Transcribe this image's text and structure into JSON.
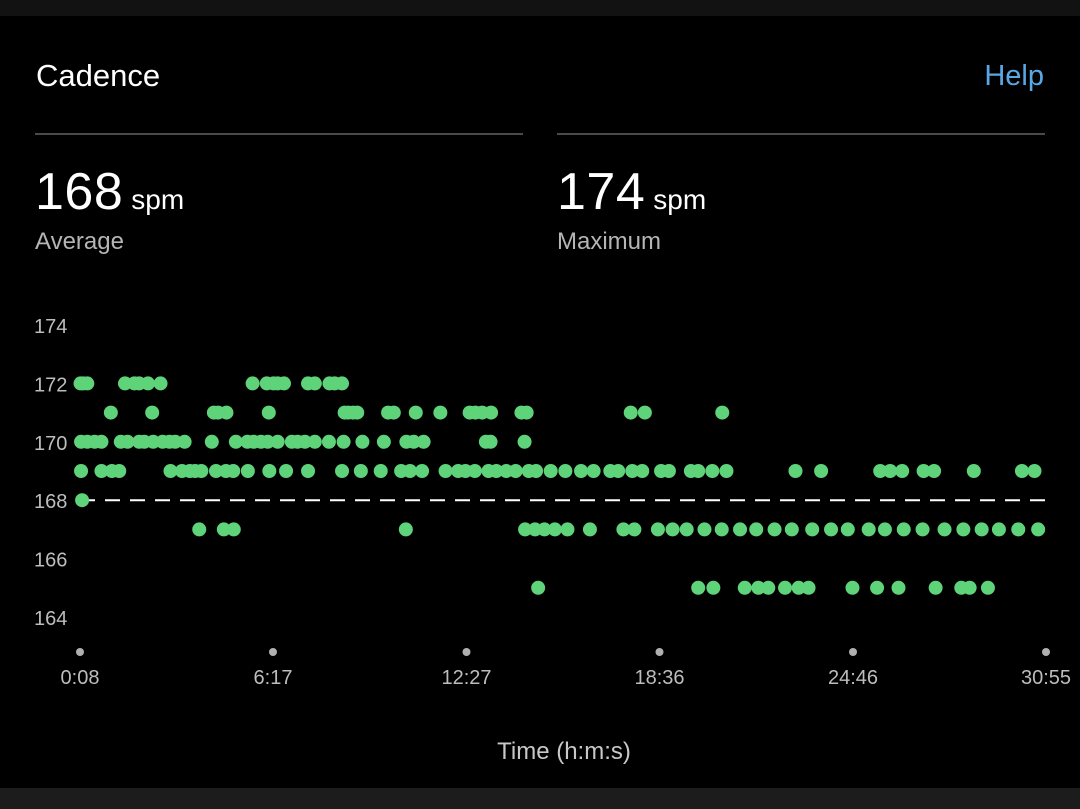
{
  "header": {
    "title": "Cadence",
    "help_label": "Help"
  },
  "stats": {
    "average": {
      "value": "168",
      "unit": "spm",
      "label": "Average"
    },
    "maximum": {
      "value": "174",
      "unit": "spm",
      "label": "Maximum"
    }
  },
  "colors": {
    "point": "#5fd37a",
    "accent_link": "#5aa7e6",
    "background": "#000000",
    "reference_line": "#ffffff"
  },
  "chart_data": {
    "type": "scatter",
    "title": "",
    "xlabel": "Time (h:m:s)",
    "ylabel": "",
    "x_unit": "seconds",
    "xlim": [
      8,
      1855
    ],
    "ylim": [
      164,
      174
    ],
    "y_ticks": [
      174,
      172,
      170,
      168,
      166,
      164
    ],
    "x_ticks": [
      {
        "value": 8,
        "label": "0:08"
      },
      {
        "value": 377,
        "label": "6:17"
      },
      {
        "value": 747,
        "label": "12:27"
      },
      {
        "value": 1116,
        "label": "18:36"
      },
      {
        "value": 1486,
        "label": "24:46"
      },
      {
        "value": 1855,
        "label": "30:55"
      }
    ],
    "reference_line": {
      "value": 168,
      "label": "Average",
      "style": "dashed"
    },
    "grid": false,
    "legend": "none",
    "series": [
      {
        "points": [
          [
            9,
            172
          ],
          [
            14,
            172
          ],
          [
            22,
            172
          ],
          [
            94,
            172
          ],
          [
            112,
            172
          ],
          [
            121,
            172
          ],
          [
            138,
            172
          ],
          [
            162,
            172
          ],
          [
            338,
            172
          ],
          [
            365,
            172
          ],
          [
            378,
            172
          ],
          [
            386,
            172
          ],
          [
            398,
            172
          ],
          [
            444,
            172
          ],
          [
            457,
            172
          ],
          [
            485,
            172
          ],
          [
            495,
            172
          ],
          [
            509,
            172
          ],
          [
            67,
            171
          ],
          [
            146,
            171
          ],
          [
            264,
            171
          ],
          [
            272,
            171
          ],
          [
            288,
            171
          ],
          [
            369,
            171
          ],
          [
            514,
            171
          ],
          [
            521,
            171
          ],
          [
            530,
            171
          ],
          [
            538,
            171
          ],
          [
            597,
            171
          ],
          [
            608,
            171
          ],
          [
            650,
            171
          ],
          [
            697,
            171
          ],
          [
            753,
            171
          ],
          [
            764,
            171
          ],
          [
            777,
            171
          ],
          [
            794,
            171
          ],
          [
            852,
            171
          ],
          [
            862,
            171
          ],
          [
            1061,
            171
          ],
          [
            1088,
            171
          ],
          [
            1236,
            171
          ],
          [
            10,
            170
          ],
          [
            22,
            170
          ],
          [
            36,
            170
          ],
          [
            49,
            170
          ],
          [
            86,
            170
          ],
          [
            99,
            170
          ],
          [
            121,
            170
          ],
          [
            131,
            170
          ],
          [
            148,
            170
          ],
          [
            166,
            170
          ],
          [
            179,
            170
          ],
          [
            190,
            170
          ],
          [
            208,
            170
          ],
          [
            260,
            170
          ],
          [
            306,
            170
          ],
          [
            328,
            170
          ],
          [
            340,
            170
          ],
          [
            354,
            170
          ],
          [
            367,
            170
          ],
          [
            386,
            170
          ],
          [
            413,
            170
          ],
          [
            424,
            170
          ],
          [
            438,
            170
          ],
          [
            457,
            170
          ],
          [
            484,
            170
          ],
          [
            512,
            170
          ],
          [
            548,
            170
          ],
          [
            589,
            170
          ],
          [
            632,
            170
          ],
          [
            646,
            170
          ],
          [
            665,
            170
          ],
          [
            784,
            170
          ],
          [
            793,
            170
          ],
          [
            858,
            170
          ],
          [
            10,
            169
          ],
          [
            49,
            169
          ],
          [
            69,
            169
          ],
          [
            83,
            169
          ],
          [
            181,
            169
          ],
          [
            203,
            169
          ],
          [
            218,
            169
          ],
          [
            228,
            169
          ],
          [
            240,
            169
          ],
          [
            268,
            169
          ],
          [
            287,
            169
          ],
          [
            301,
            169
          ],
          [
            329,
            169
          ],
          [
            370,
            169
          ],
          [
            402,
            169
          ],
          [
            444,
            169
          ],
          [
            509,
            169
          ],
          [
            545,
            169
          ],
          [
            583,
            169
          ],
          [
            622,
            169
          ],
          [
            639,
            169
          ],
          [
            662,
            169
          ],
          [
            707,
            169
          ],
          [
            731,
            169
          ],
          [
            745,
            169
          ],
          [
            763,
            169
          ],
          [
            789,
            169
          ],
          [
            804,
            169
          ],
          [
            823,
            169
          ],
          [
            841,
            169
          ],
          [
            866,
            169
          ],
          [
            880,
            169
          ],
          [
            908,
            169
          ],
          [
            936,
            169
          ],
          [
            966,
            169
          ],
          [
            990,
            169
          ],
          [
            1022,
            169
          ],
          [
            1037,
            169
          ],
          [
            1064,
            169
          ],
          [
            1083,
            169
          ],
          [
            1119,
            169
          ],
          [
            1134,
            169
          ],
          [
            1176,
            169
          ],
          [
            1190,
            169
          ],
          [
            1217,
            169
          ],
          [
            1244,
            169
          ],
          [
            1376,
            169
          ],
          [
            1425,
            169
          ],
          [
            1538,
            169
          ],
          [
            1557,
            169
          ],
          [
            1580,
            169
          ],
          [
            1621,
            169
          ],
          [
            1641,
            169
          ],
          [
            1717,
            169
          ],
          [
            1809,
            169
          ],
          [
            1833,
            169
          ],
          [
            12,
            168
          ],
          [
            236,
            167
          ],
          [
            283,
            167
          ],
          [
            302,
            167
          ],
          [
            631,
            167
          ],
          [
            859,
            167
          ],
          [
            878,
            167
          ],
          [
            896,
            167
          ],
          [
            916,
            167
          ],
          [
            940,
            167
          ],
          [
            983,
            167
          ],
          [
            1047,
            167
          ],
          [
            1068,
            167
          ],
          [
            1113,
            167
          ],
          [
            1141,
            167
          ],
          [
            1168,
            167
          ],
          [
            1202,
            167
          ],
          [
            1235,
            167
          ],
          [
            1270,
            167
          ],
          [
            1301,
            167
          ],
          [
            1336,
            167
          ],
          [
            1369,
            167
          ],
          [
            1408,
            167
          ],
          [
            1444,
            167
          ],
          [
            1476,
            167
          ],
          [
            1516,
            167
          ],
          [
            1547,
            167
          ],
          [
            1583,
            167
          ],
          [
            1619,
            167
          ],
          [
            1661,
            167
          ],
          [
            1697,
            167
          ],
          [
            1732,
            167
          ],
          [
            1765,
            167
          ],
          [
            1802,
            167
          ],
          [
            1840,
            167
          ],
          [
            884,
            165
          ],
          [
            1190,
            165
          ],
          [
            1219,
            165
          ],
          [
            1279,
            165
          ],
          [
            1305,
            165
          ],
          [
            1324,
            165
          ],
          [
            1356,
            165
          ],
          [
            1382,
            165
          ],
          [
            1401,
            165
          ],
          [
            1485,
            165
          ],
          [
            1532,
            165
          ],
          [
            1573,
            165
          ],
          [
            1644,
            165
          ],
          [
            1693,
            165
          ],
          [
            1709,
            165
          ],
          [
            1744,
            165
          ]
        ]
      }
    ]
  }
}
